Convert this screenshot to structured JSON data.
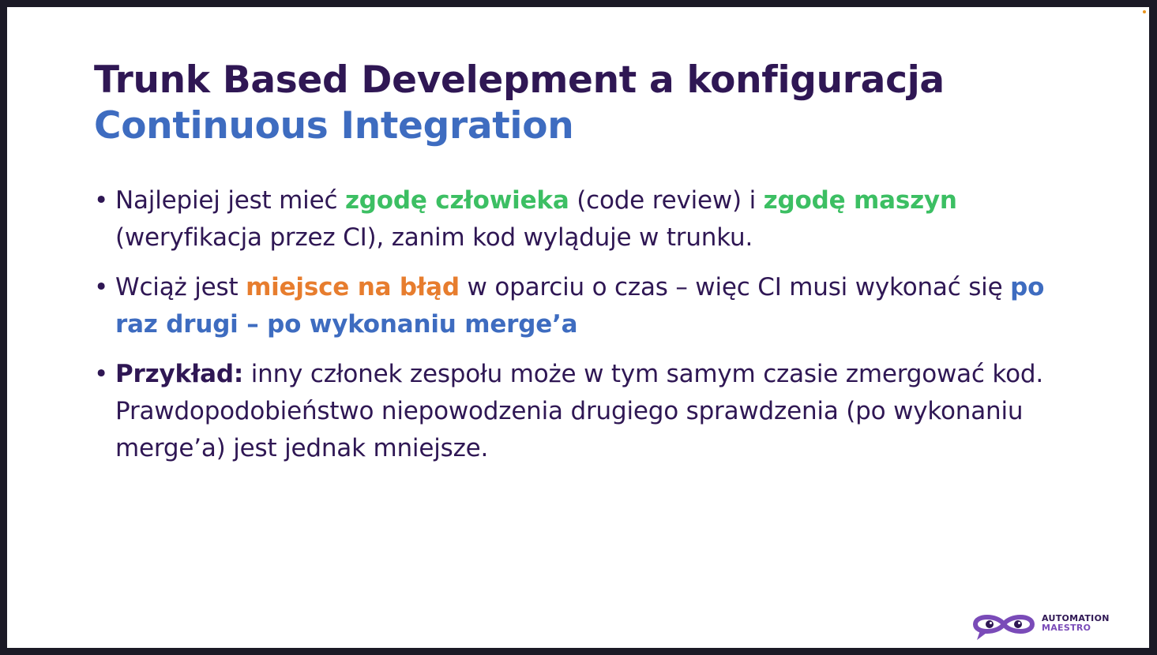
{
  "title": {
    "line1": "Trunk Based Develepment a konfiguracja",
    "line2": "Continuous Integration"
  },
  "bullet_symbol": "•",
  "bullets": [
    {
      "p1": "Najlepiej jest mieć ",
      "h1": "zgodę człowieka",
      "p2": " (code review) i ",
      "h2": "zgodę maszyn",
      "p3": " (weryfikacja przez CI), zanim kod wyląduje w trunku."
    },
    {
      "p1": "Wciąż jest ",
      "h1": "miejsce na błąd",
      "p2": " w oparciu o czas – więc CI musi wykonać się ",
      "h2": "po raz drugi – po wykonaniu merge’a"
    },
    {
      "h1": "Przykład:",
      "p1": " inny członek zespołu może w tym samym czasie zmergować kod. Prawdopodobieństwo niepowodzenia drugiego sprawdzenia (po wykonaniu merge’a) jest jednak mniejsze."
    }
  ],
  "logo": {
    "line1": "AUTOMATION",
    "line2": "MAESTRO",
    "icon": "infinity-eyes-icon"
  },
  "colors": {
    "title_dark": "#2f1754",
    "accent_blue": "#3e6cc0",
    "accent_green": "#3cbf63",
    "accent_orange": "#e77d2e",
    "logo_purple": "#7a4bb8"
  }
}
